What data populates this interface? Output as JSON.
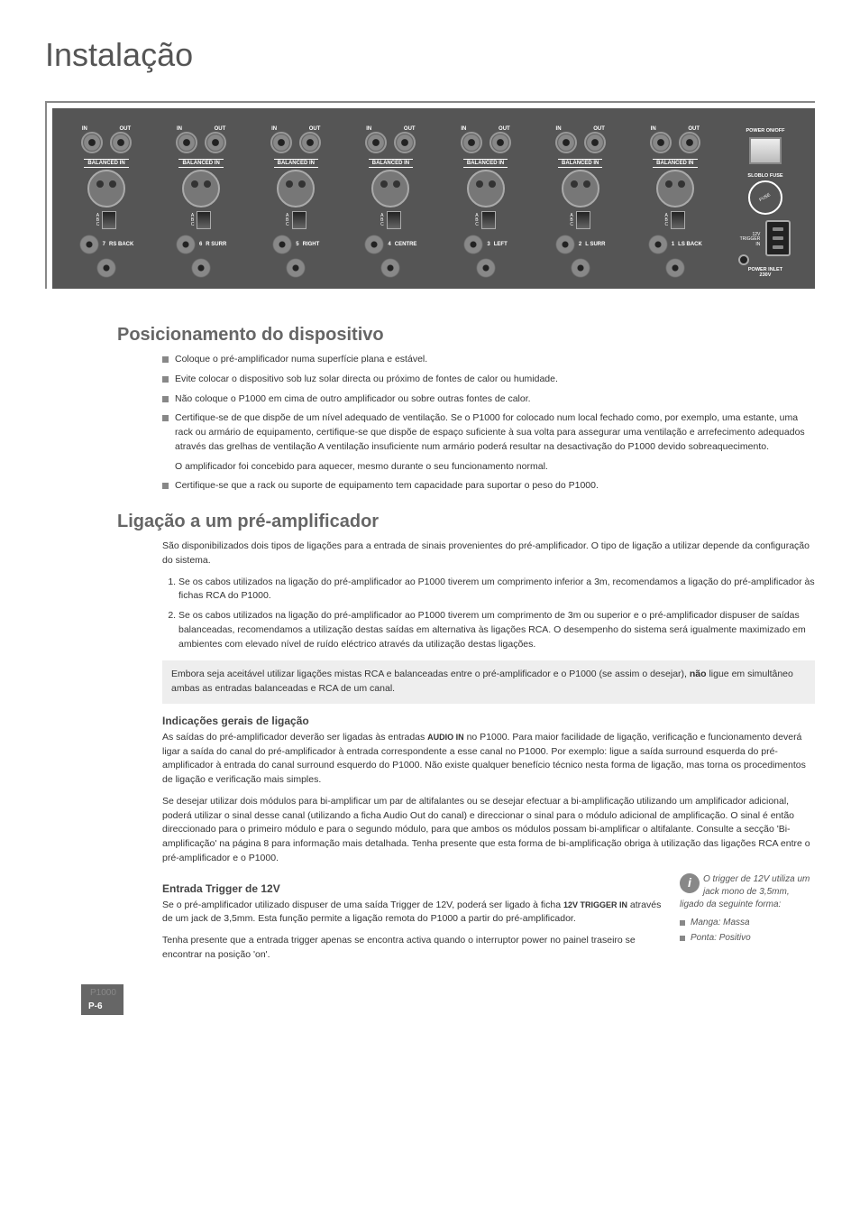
{
  "page_title": "Instalação",
  "panel": {
    "in_label": "IN",
    "out_label": "OUT",
    "balanced_label": "BALANCED IN",
    "abc": "A\nB\nC",
    "channels": [
      {
        "num": "7",
        "name": "RS BACK"
      },
      {
        "num": "6",
        "name": "R SURR"
      },
      {
        "num": "5",
        "name": "RIGHT"
      },
      {
        "num": "4",
        "name": "CENTRE"
      },
      {
        "num": "3",
        "name": "LEFT"
      },
      {
        "num": "2",
        "name": "L SURR"
      },
      {
        "num": "1",
        "name": "LS BACK"
      }
    ],
    "power_onoff": "POWER ON/OFF",
    "sloblo": "SLOBLO FUSE",
    "fuse_text": "FUSE",
    "trigger": "12V\nTRIGGER\nIN",
    "inlet": "POWER INLET\n230V"
  },
  "sec1": {
    "title": "Posicionamento do dispositivo",
    "b1": "Coloque o pré-amplificador numa superfície plana e estável.",
    "b2": "Evite colocar o dispositivo sob luz solar directa ou próximo de fontes de calor ou humidade.",
    "b3": "Não coloque o P1000 em cima de outro amplificador ou sobre outras fontes de calor.",
    "b4": "Certifique-se de que dispõe de um nível adequado de ventilação. Se o P1000 for colocado num local fechado como, por exemplo, uma estante, uma rack ou armário de equipamento, certifique-se que dispõe de espaço suficiente à sua volta para assegurar uma ventilação e arrefecimento adequados através das grelhas de ventilação A ventilação insuficiente num armário poderá resultar na desactivação do P1000 devido sobreaquecimento.",
    "b4_extra": "O amplificador foi concebido para aquecer, mesmo durante o seu funcionamento normal.",
    "b5": "Certifique-se que a rack ou suporte de equipamento tem capacidade para suportar o peso do P1000."
  },
  "sec2": {
    "title": "Ligação a um pré-amplificador",
    "intro": "São disponibilizados dois tipos de ligações para a entrada de sinais provenientes do pré-amplificador. O tipo de ligação a utilizar depende da configuração do sistema.",
    "n1": "Se os cabos utilizados na ligação do pré-amplificador ao P1000 tiverem um comprimento inferior a 3m, recomendamos a ligação do pré-amplificador às fichas RCA do P1000.",
    "n2": "Se os cabos utilizados na ligação do pré-amplificador ao P1000 tiverem um comprimento de 3m ou superior e o pré-amplificador dispuser de saídas balanceadas, recomendamos a utilização destas saídas em alternativa às ligações RCA. O desempenho do sistema será igualmente maximizado em ambientes com elevado nível de ruído eléctrico através da utilização destas ligações.",
    "note_a": "Embora seja aceitável utilizar ligações mistas RCA e balanceadas entre o pré-amplificador e o P1000 (se assim o desejar), ",
    "note_bold": "não",
    "note_b": " ligue em simultâneo ambas as entradas balanceadas e RCA de um canal.",
    "sub1_title": "Indicações gerais de ligação",
    "sub1_p1a": "As saídas do pré-amplificador deverão ser ligadas às entradas ",
    "sub1_audio": "AUDIO IN",
    "sub1_p1b": " no P1000. Para maior facilidade de ligação, verificação e funcionamento deverá ligar a saída do canal do pré-amplificador à entrada correspondente a esse canal no P1000. Por exemplo: ligue a saída surround esquerda do pré-amplificador à entrada do canal surround esquerdo do P1000. Não existe qualquer benefício técnico nesta forma de ligação, mas torna os procedimentos de ligação e verificação mais simples.",
    "sub1_p2": "Se desejar utilizar dois módulos para bi-amplificar um par de altifalantes ou se desejar efectuar a bi-amplificação utilizando um amplificador adicional, poderá utilizar o sinal desse canal (utilizando a ficha Audio Out do canal) e direccionar o sinal para o módulo adicional de amplificação. O sinal é então direccionado para o primeiro módulo e para o segundo módulo, para que ambos os módulos possam bi-amplificar o altifalante. Consulte a secção 'Bi-amplificação' na página 8 para informação mais detalhada. Tenha presente que esta forma de bi-amplificação obriga à utilização das ligações RCA entre o pré-amplificador e o P1000.",
    "sub2_title": "Entrada Trigger de 12V",
    "sub2_p1a": "Se o pré-amplificador utilizado dispuser de uma saída Trigger de 12V, poderá ser ligado à ficha ",
    "sub2_trig": "12V TRIGGER IN",
    "sub2_p1b": " através de um jack de 3,5mm. Esta função permite a ligação remota do P1000 a partir do pré-amplificador.",
    "sub2_p2": "Tenha presente que a entrada trigger apenas se encontra activa quando o interruptor power no painel traseiro se encontrar na posição 'on'."
  },
  "side": {
    "intro": "O trigger de 12V utiliza um jack mono de 3,5mm, ligado da seguinte forma:",
    "i1": "Manga: Massa",
    "i2": "Ponta: Positivo"
  },
  "footer": {
    "model": "P1000",
    "page": "P-6"
  }
}
